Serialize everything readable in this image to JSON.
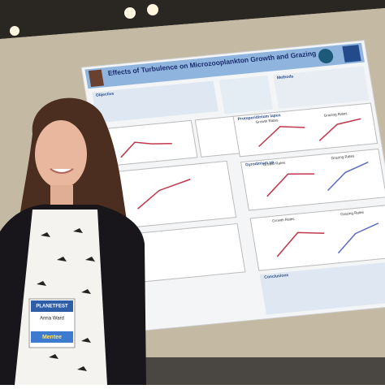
{
  "poster": {
    "title": "Effects of Turbulence on Microzooplankton Growth and Grazing",
    "sections": [
      "Objective",
      "Methods",
      "Protoperidinium lapus",
      "Gyrodinium sp.",
      "Conclusions"
    ],
    "panel_labels": [
      "Growth Rates",
      "Grazing Rates",
      "Growth Rates",
      "Grazing Rates",
      "Growth Rates",
      "Grazing Rates"
    ]
  },
  "badge": {
    "brand": "PLANETFEST",
    "name": "Anna Ward",
    "role": "Mentee"
  }
}
